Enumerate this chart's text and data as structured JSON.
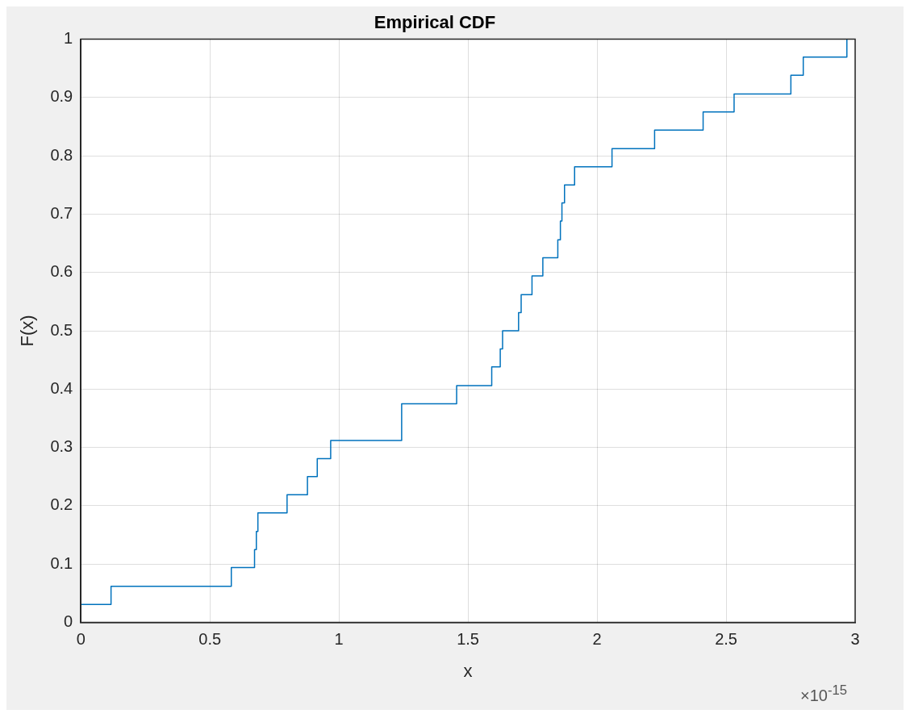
{
  "chart_data": {
    "type": "step",
    "title": "Empirical CDF",
    "xlabel": "x",
    "ylabel": "F(x)",
    "annotations": [
      "×10$^{-15}$"
    ],
    "series": [
      {
        "color": "#0072bd",
        "x": [
          0,
          0.117,
          0.583,
          0.673,
          0.68,
          0.686,
          0.799,
          0.878,
          0.916,
          0.968,
          1.243,
          1.243,
          1.456,
          1.592,
          1.625,
          1.634,
          1.696,
          1.706,
          1.748,
          1.79,
          1.848,
          1.858,
          1.864,
          1.874,
          1.913,
          2.058,
          2.223,
          2.411,
          2.531,
          2.751,
          2.799,
          2.968
        ],
        "values": [
          0.031,
          0.062,
          0.094,
          0.125,
          0.156,
          0.188,
          0.219,
          0.25,
          0.281,
          0.312,
          0.344,
          0.375,
          0.406,
          0.438,
          0.469,
          0.5,
          0.531,
          0.562,
          0.594,
          0.625,
          0.656,
          0.688,
          0.719,
          0.75,
          0.781,
          0.812,
          0.844,
          0.875,
          0.906,
          0.938,
          0.969,
          1
        ]
      }
    ],
    "xlim": [
      0,
      3
    ],
    "xticks": [
      0,
      0.5,
      1,
      1.5,
      2,
      2.5,
      3
    ],
    "ylim": [
      0,
      1
    ],
    "yticks": [
      0,
      0.1,
      0.2,
      0.3,
      0.4,
      0.5,
      0.6,
      0.7,
      0.8,
      0.9,
      1
    ],
    "grid": true,
    "line_style": "solid",
    "marker": "none"
  }
}
